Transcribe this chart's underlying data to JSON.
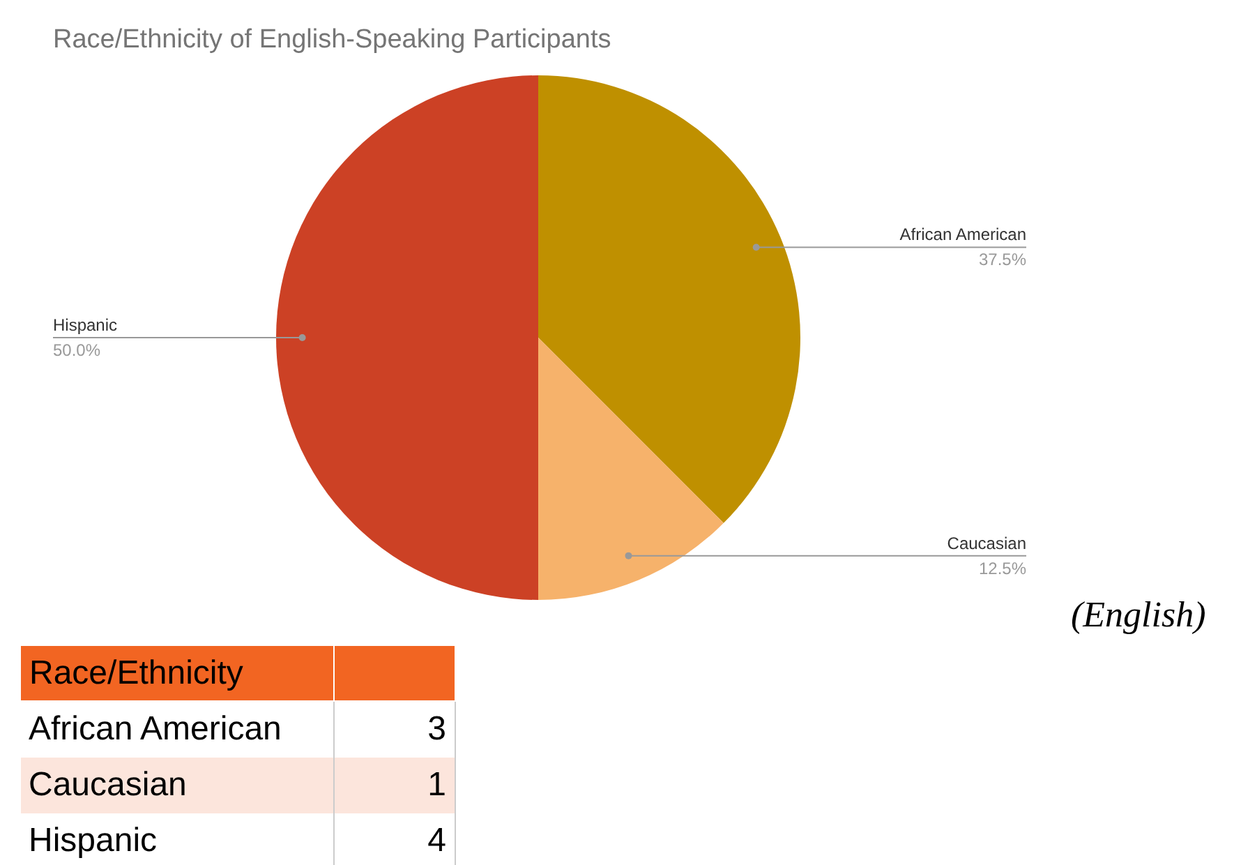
{
  "chart_data": {
    "type": "pie",
    "title": "Race/Ethnicity of English-Speaking Participants",
    "categories": [
      "African American",
      "Caucasian",
      "Hispanic"
    ],
    "values": [
      37.5,
      12.5,
      50.0
    ],
    "colors": [
      "#bf9000",
      "#f6b26b",
      "#cc4125"
    ],
    "value_labels": [
      "37.5%",
      "12.5%",
      "50.0%"
    ],
    "annotations": [
      "(English)",
      "Race/Ethnicity",
      "3",
      "1",
      "4"
    ]
  }
}
